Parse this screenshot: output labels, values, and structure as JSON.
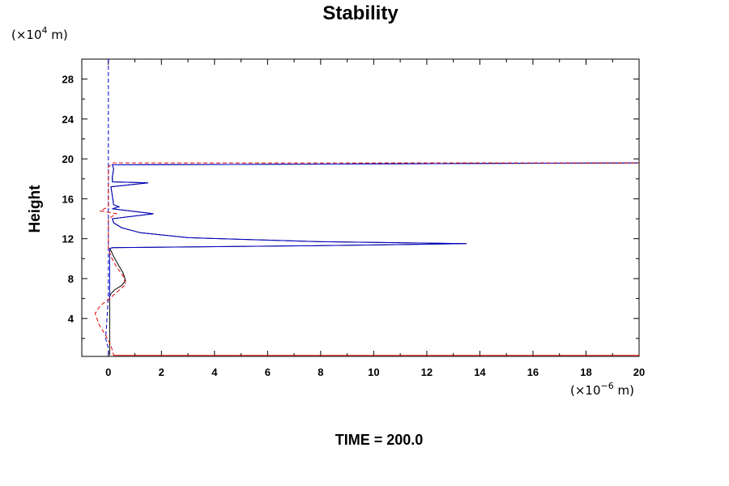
{
  "chart_data": {
    "type": "line",
    "title": "Stability",
    "ylabel": "Height",
    "xlabel": "",
    "y_unit_prefix": "(×10",
    "y_unit_exp": "4",
    "y_unit_suffix": " m)",
    "x_unit_prefix": "(×10",
    "x_unit_exp": "−6",
    "x_unit_suffix": " m)",
    "footer": "TIME = 200.0",
    "xlim": [
      -1,
      20
    ],
    "ylim": [
      0.2,
      30
    ],
    "x_ticks": [
      0,
      2,
      4,
      6,
      8,
      10,
      12,
      14,
      16,
      18,
      20
    ],
    "y_ticks": [
      4,
      8,
      12,
      16,
      20,
      24,
      28
    ],
    "grid": false,
    "series": [
      {
        "color": "#000000",
        "style": "solid",
        "points": [
          [
            0.05,
            0.3
          ],
          [
            0.05,
            6.2
          ],
          [
            0.1,
            6.5
          ],
          [
            0.25,
            6.9
          ],
          [
            0.5,
            7.3
          ],
          [
            0.65,
            7.8
          ],
          [
            0.55,
            8.6
          ],
          [
            0.35,
            9.5
          ],
          [
            0.2,
            10.2
          ],
          [
            0.1,
            10.8
          ],
          [
            0.05,
            11.0
          ],
          [
            0.15,
            11.1
          ],
          [
            8,
            11.3
          ],
          [
            13.5,
            11.5
          ],
          [
            8,
            11.7
          ],
          [
            3,
            12.1
          ],
          [
            1.2,
            12.6
          ],
          [
            0.5,
            13.1
          ],
          [
            0.2,
            13.6
          ],
          [
            0.15,
            14.0
          ],
          [
            1.7,
            14.5
          ],
          [
            0.15,
            15.0
          ],
          [
            0.4,
            15.2
          ],
          [
            0.2,
            15.4
          ],
          [
            0.1,
            17.2
          ],
          [
            1.5,
            17.6
          ],
          [
            0.15,
            17.7
          ],
          [
            0.15,
            18.2
          ],
          [
            0.2,
            19.0
          ],
          [
            0.15,
            19.4
          ],
          [
            20,
            19.6
          ]
        ]
      },
      {
        "color": "#0000cc",
        "style": "solid",
        "points": [
          [
            0.05,
            6.0
          ],
          [
            0.05,
            11.0
          ],
          [
            0.15,
            11.1
          ],
          [
            8,
            11.3
          ],
          [
            13.5,
            11.5
          ],
          [
            8,
            11.7
          ],
          [
            3,
            12.1
          ],
          [
            1.2,
            12.6
          ],
          [
            0.5,
            13.1
          ],
          [
            0.2,
            13.6
          ],
          [
            0.15,
            14.0
          ],
          [
            1.7,
            14.5
          ],
          [
            0.15,
            15.0
          ],
          [
            0.4,
            15.2
          ],
          [
            0.2,
            15.4
          ],
          [
            0.1,
            17.2
          ],
          [
            1.5,
            17.6
          ],
          [
            0.15,
            17.7
          ],
          [
            0.15,
            18.2
          ],
          [
            0.2,
            19.0
          ],
          [
            0.15,
            19.4
          ],
          [
            20,
            19.6
          ]
        ]
      },
      {
        "color": "#0000cc",
        "style": "dashed",
        "points": [
          [
            0,
            30
          ],
          [
            0,
            6.5
          ],
          [
            -0.05,
            4.0
          ],
          [
            -0.1,
            2.0
          ],
          [
            0,
            1.0
          ],
          [
            0,
            0.2
          ]
        ]
      },
      {
        "color": "#dd0000",
        "style": "dashed",
        "points": [
          [
            0.2,
            0.3
          ],
          [
            20,
            0.3
          ],
          [
            0.2,
            0.3
          ],
          [
            0.1,
            1.3
          ],
          [
            -0.1,
            2.3
          ],
          [
            -0.35,
            3.4
          ],
          [
            -0.5,
            4.5
          ],
          [
            -0.3,
            5.3
          ],
          [
            0.05,
            6.0
          ],
          [
            0.35,
            6.7
          ],
          [
            0.65,
            7.4
          ],
          [
            0.55,
            8.3
          ],
          [
            0.3,
            9.2
          ],
          [
            0.1,
            10.2
          ],
          [
            0,
            11.0
          ],
          [
            0,
            14.0
          ],
          [
            0.3,
            14.5
          ],
          [
            -0.3,
            14.8
          ],
          [
            0,
            15.2
          ],
          [
            0,
            19.2
          ],
          [
            0.2,
            19.6
          ],
          [
            20,
            19.6
          ]
        ]
      }
    ]
  }
}
